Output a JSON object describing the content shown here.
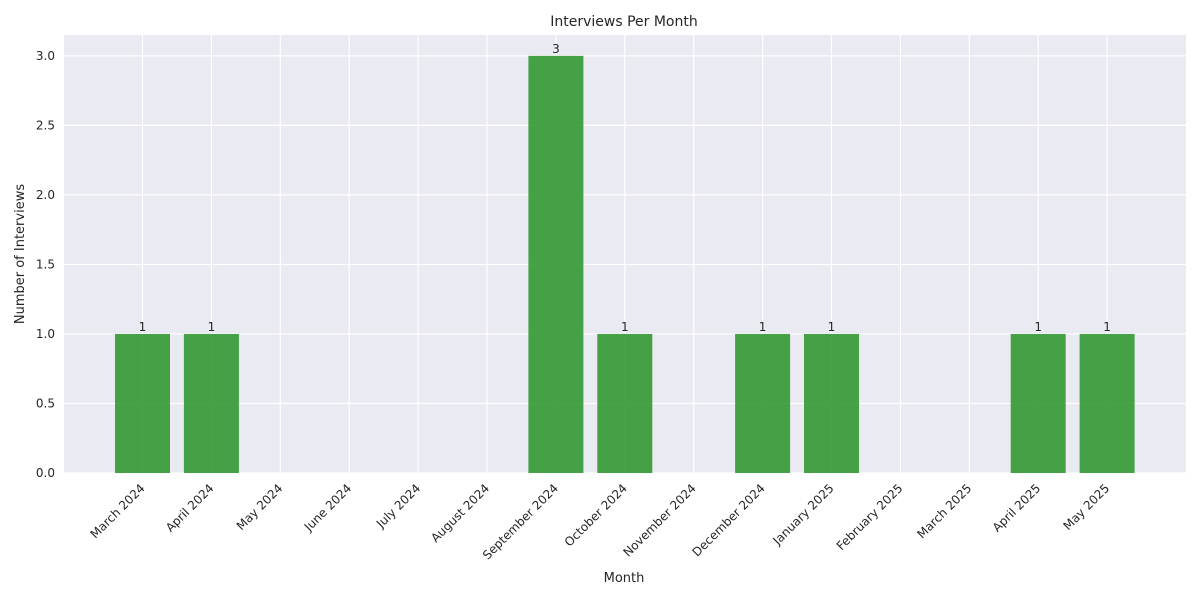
{
  "chart_data": {
    "type": "bar",
    "title": "Interviews Per Month",
    "xlabel": "Month",
    "ylabel": "Number of Interviews",
    "categories": [
      "March 2024",
      "April 2024",
      "May 2024",
      "June 2024",
      "July 2024",
      "August 2024",
      "September 2024",
      "October 2024",
      "November 2024",
      "December 2024",
      "January 2025",
      "February 2025",
      "March 2025",
      "April 2025",
      "May 2025"
    ],
    "values": [
      1,
      1,
      0,
      0,
      0,
      0,
      3,
      1,
      0,
      1,
      1,
      0,
      0,
      1,
      1
    ],
    "data_labels": [
      "1",
      "1",
      "",
      "",
      "",
      "",
      "3",
      "1",
      "",
      "1",
      "1",
      "",
      "",
      "1",
      "1"
    ],
    "y_ticks": [
      "0.0",
      "0.5",
      "1.0",
      "1.5",
      "2.0",
      "2.5",
      "3.0"
    ],
    "ylim": [
      0,
      3.15
    ],
    "grid": true,
    "colors": {
      "bar": "#339933",
      "plot_background": "#eaeaf2",
      "grid": "#ffffff",
      "text": "#262626"
    }
  }
}
